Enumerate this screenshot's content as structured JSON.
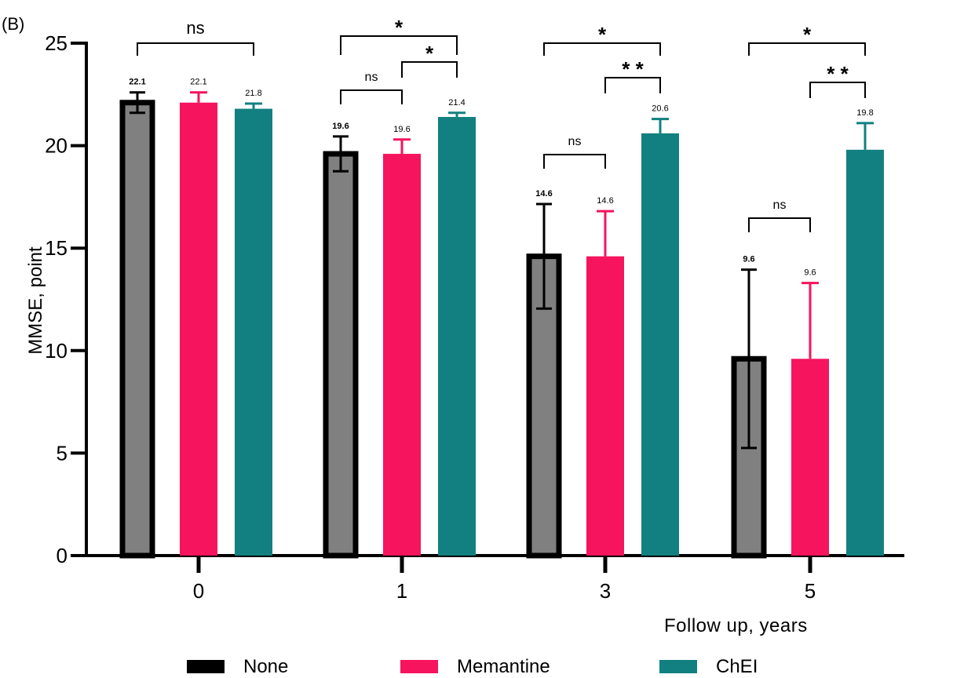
{
  "panel_label": "(B)",
  "colors": {
    "None": "#808080",
    "Memantine": "#f5145d",
    "ChEI": "#128080",
    "none_outline": "#000000"
  },
  "chart_data": {
    "type": "bar",
    "ylabel": "MMSE, point",
    "xlabel": "Follow up, years",
    "ylim": [
      0,
      25
    ],
    "yticks": [
      "0",
      "5",
      "10",
      "15",
      "20",
      "25"
    ],
    "categories": [
      "0",
      "1",
      "3",
      "5"
    ],
    "series": [
      {
        "name": "None",
        "values": [
          22.1,
          19.6,
          14.6,
          9.6
        ],
        "errors": [
          0.5,
          0.85,
          2.55,
          4.35
        ],
        "labels": [
          "22.1",
          "19.6",
          "14.6",
          "9.6"
        ]
      },
      {
        "name": "Memantine",
        "values": [
          22.1,
          19.6,
          14.6,
          9.6
        ],
        "errors": [
          0.5,
          0.7,
          2.2,
          3.7
        ],
        "labels": [
          "22.1",
          "19.6",
          "14.6",
          "9.6"
        ]
      },
      {
        "name": "ChEI",
        "values": [
          21.8,
          21.4,
          20.6,
          19.8
        ],
        "errors": [
          0.25,
          0.2,
          0.7,
          1.3
        ],
        "labels": [
          "21.8",
          "21.4",
          "20.6",
          "19.8"
        ]
      }
    ],
    "significance": [
      {
        "group": 0,
        "from": 0,
        "to": 2,
        "text": "ns"
      },
      {
        "group": 1,
        "from": 0,
        "to": 2,
        "text": "*"
      },
      {
        "group": 1,
        "from": 1,
        "to": 2,
        "text": "*"
      },
      {
        "group": 1,
        "from": 0,
        "to": 1,
        "text": "ns"
      },
      {
        "group": 2,
        "from": 0,
        "to": 2,
        "text": "*"
      },
      {
        "group": 2,
        "from": 1,
        "to": 2,
        "text": "* *"
      },
      {
        "group": 2,
        "from": 0,
        "to": 1,
        "text": "ns"
      },
      {
        "group": 3,
        "from": 0,
        "to": 2,
        "text": "*"
      },
      {
        "group": 3,
        "from": 1,
        "to": 2,
        "text": "* *"
      },
      {
        "group": 3,
        "from": 0,
        "to": 1,
        "text": "ns"
      }
    ],
    "legend": {
      "position": "bottom",
      "items": [
        "None",
        "Memantine",
        "ChEI"
      ]
    }
  }
}
